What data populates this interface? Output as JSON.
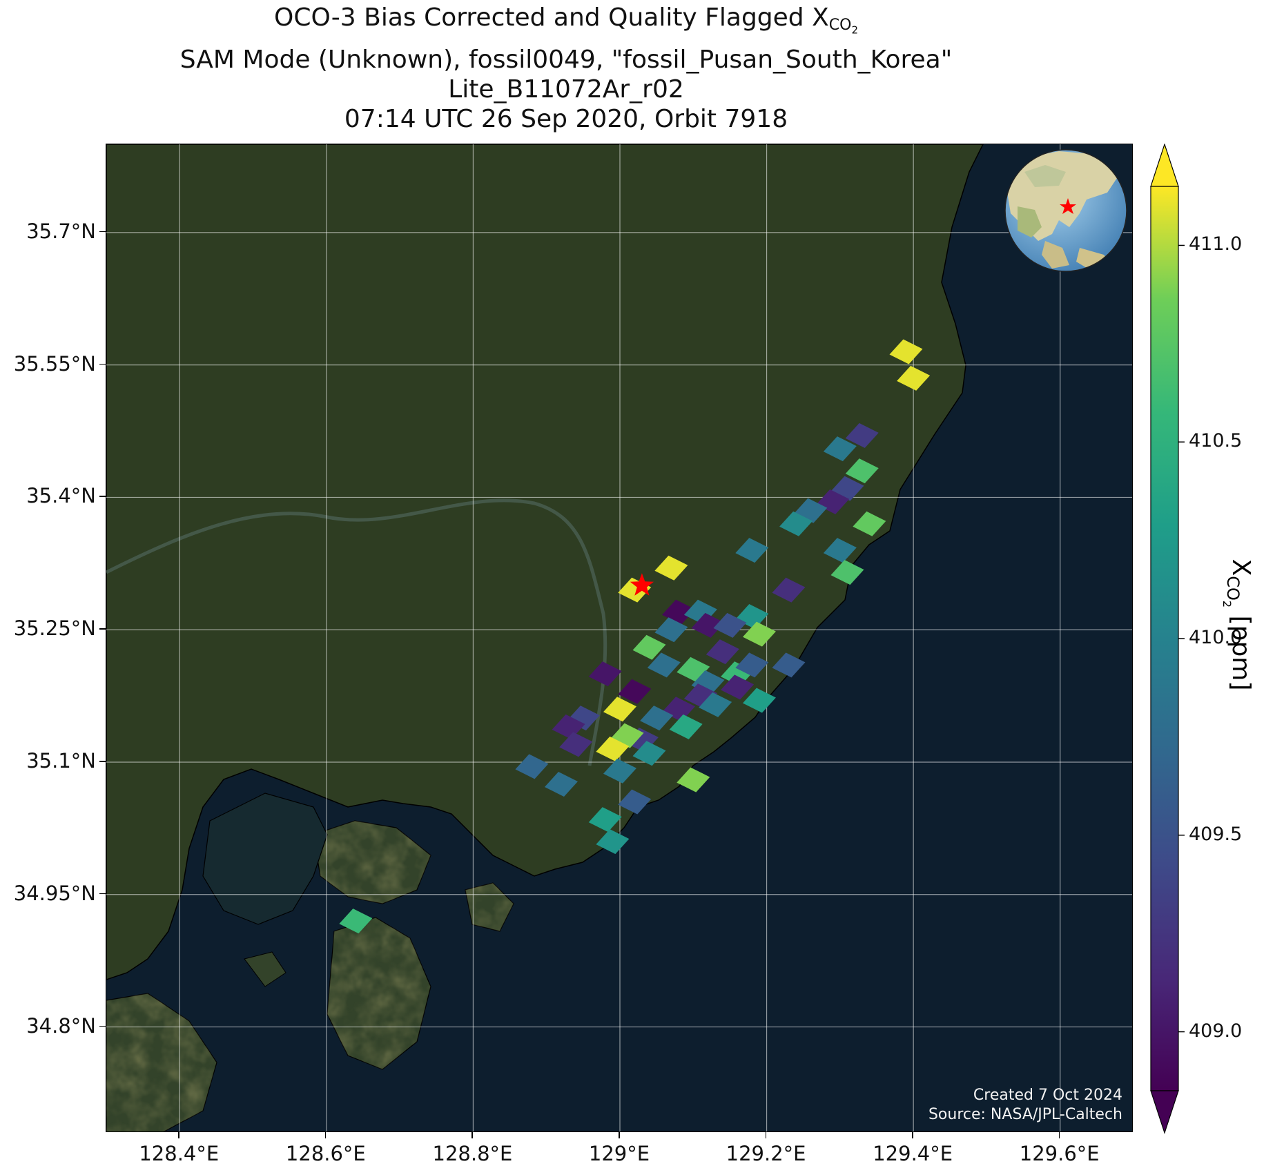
{
  "title": {
    "line1_prefix": "OCO-3 Bias Corrected and Quality Flagged X",
    "line1_sub": "CO",
    "line1_subsub": "2",
    "line2": "SAM Mode (Unknown), fossil0049, \"fossil_Pusan_South_Korea\"",
    "line3": "Lite_B11072Ar_r02",
    "line4": "07:14 UTC 26 Sep 2020, Orbit 7918"
  },
  "credits": {
    "created": "Created 7 Oct 2024",
    "source": "Source: NASA/JPL-Caltech"
  },
  "colors": {
    "land": "#3a4a2a",
    "sea": "#0d1e2e",
    "target_star": "#ff0000"
  },
  "chart_data": {
    "type": "scatter",
    "map_extent": {
      "lon": [
        128.3,
        129.7
      ],
      "lat": [
        34.68,
        35.8
      ]
    },
    "x_ticks": [
      "128.4°E",
      "128.6°E",
      "128.8°E",
      "129°E",
      "129.2°E",
      "129.4°E",
      "129.6°E"
    ],
    "x_tick_values": [
      128.4,
      128.6,
      128.8,
      129.0,
      129.2,
      129.4,
      129.6
    ],
    "y_ticks": [
      "35.7°N",
      "35.55°N",
      "35.4°N",
      "35.25°N",
      "35.1°N",
      "34.95°N",
      "34.8°N"
    ],
    "y_tick_values": [
      35.7,
      35.55,
      35.4,
      35.25,
      35.1,
      34.95,
      34.8
    ],
    "grid": true,
    "target": {
      "lon": 129.03,
      "lat": 35.3,
      "marker": "star"
    },
    "colorbar": {
      "label_prefix": "X",
      "label_sub": "CO",
      "label_subsub": "2",
      "label_suffix": " [ppm]",
      "range": [
        408.85,
        411.15
      ],
      "ticks": [
        "409.0",
        "409.5",
        "410.0",
        "410.5",
        "411.0"
      ],
      "tick_values": [
        409.0,
        409.5,
        410.0,
        410.5,
        411.0
      ],
      "extend": "both",
      "colormap": "viridis"
    },
    "soundings": [
      {
        "lon": 129.39,
        "lat": 35.565,
        "xco2": 411.1
      },
      {
        "lon": 129.4,
        "lat": 35.535,
        "xco2": 411.1
      },
      {
        "lon": 129.33,
        "lat": 35.47,
        "xco2": 409.3
      },
      {
        "lon": 129.3,
        "lat": 35.455,
        "xco2": 409.9
      },
      {
        "lon": 129.33,
        "lat": 35.43,
        "xco2": 410.7
      },
      {
        "lon": 129.31,
        "lat": 35.41,
        "xco2": 409.4
      },
      {
        "lon": 129.29,
        "lat": 35.395,
        "xco2": 409.1
      },
      {
        "lon": 129.26,
        "lat": 35.385,
        "xco2": 409.8
      },
      {
        "lon": 129.24,
        "lat": 35.37,
        "xco2": 410.1
      },
      {
        "lon": 129.34,
        "lat": 35.37,
        "xco2": 410.8
      },
      {
        "lon": 129.18,
        "lat": 35.34,
        "xco2": 409.9
      },
      {
        "lon": 129.3,
        "lat": 35.34,
        "xco2": 409.9
      },
      {
        "lon": 129.31,
        "lat": 35.315,
        "xco2": 410.7
      },
      {
        "lon": 129.07,
        "lat": 35.32,
        "xco2": 411.1
      },
      {
        "lon": 129.23,
        "lat": 35.295,
        "xco2": 409.2
      },
      {
        "lon": 129.02,
        "lat": 35.295,
        "xco2": 411.1
      },
      {
        "lon": 129.08,
        "lat": 35.27,
        "xco2": 408.9
      },
      {
        "lon": 129.11,
        "lat": 35.27,
        "xco2": 409.9
      },
      {
        "lon": 129.18,
        "lat": 35.265,
        "xco2": 410.2
      },
      {
        "lon": 129.12,
        "lat": 35.255,
        "xco2": 409.0
      },
      {
        "lon": 129.15,
        "lat": 35.255,
        "xco2": 409.5
      },
      {
        "lon": 129.19,
        "lat": 35.245,
        "xco2": 410.9
      },
      {
        "lon": 129.07,
        "lat": 35.25,
        "xco2": 409.8
      },
      {
        "lon": 129.04,
        "lat": 35.23,
        "xco2": 410.8
      },
      {
        "lon": 129.14,
        "lat": 35.225,
        "xco2": 409.2
      },
      {
        "lon": 129.06,
        "lat": 35.21,
        "xco2": 409.8
      },
      {
        "lon": 129.1,
        "lat": 35.205,
        "xco2": 410.7
      },
      {
        "lon": 129.23,
        "lat": 35.21,
        "xco2": 409.6
      },
      {
        "lon": 129.16,
        "lat": 35.2,
        "xco2": 410.6
      },
      {
        "lon": 129.18,
        "lat": 35.21,
        "xco2": 409.6
      },
      {
        "lon": 129.12,
        "lat": 35.19,
        "xco2": 409.8
      },
      {
        "lon": 129.16,
        "lat": 35.185,
        "xco2": 409.1
      },
      {
        "lon": 128.98,
        "lat": 35.2,
        "xco2": 409.0
      },
      {
        "lon": 129.02,
        "lat": 35.18,
        "xco2": 408.9
      },
      {
        "lon": 129.11,
        "lat": 35.175,
        "xco2": 409.2
      },
      {
        "lon": 129.13,
        "lat": 35.165,
        "xco2": 409.9
      },
      {
        "lon": 129.19,
        "lat": 35.17,
        "xco2": 410.3
      },
      {
        "lon": 129.08,
        "lat": 35.16,
        "xco2": 409.1
      },
      {
        "lon": 129.05,
        "lat": 35.15,
        "xco2": 409.8
      },
      {
        "lon": 129.0,
        "lat": 35.16,
        "xco2": 411.1
      },
      {
        "lon": 129.09,
        "lat": 35.14,
        "xco2": 410.4
      },
      {
        "lon": 128.95,
        "lat": 35.15,
        "xco2": 409.4
      },
      {
        "lon": 128.93,
        "lat": 35.14,
        "xco2": 409.1
      },
      {
        "lon": 128.94,
        "lat": 35.12,
        "xco2": 409.2
      },
      {
        "lon": 129.03,
        "lat": 35.125,
        "xco2": 409.3
      },
      {
        "lon": 129.01,
        "lat": 35.13,
        "xco2": 410.9
      },
      {
        "lon": 128.99,
        "lat": 35.115,
        "xco2": 411.1
      },
      {
        "lon": 129.04,
        "lat": 35.11,
        "xco2": 410.1
      },
      {
        "lon": 129.0,
        "lat": 35.09,
        "xco2": 409.9
      },
      {
        "lon": 128.88,
        "lat": 35.095,
        "xco2": 409.7
      },
      {
        "lon": 128.92,
        "lat": 35.075,
        "xco2": 409.8
      },
      {
        "lon": 129.1,
        "lat": 35.08,
        "xco2": 410.9
      },
      {
        "lon": 129.02,
        "lat": 35.055,
        "xco2": 409.6
      },
      {
        "lon": 128.98,
        "lat": 35.035,
        "xco2": 410.3
      },
      {
        "lon": 128.99,
        "lat": 35.01,
        "xco2": 410.2
      },
      {
        "lon": 128.64,
        "lat": 34.92,
        "xco2": 410.6
      }
    ]
  },
  "inset": {
    "description_icon": "globe-icon"
  }
}
